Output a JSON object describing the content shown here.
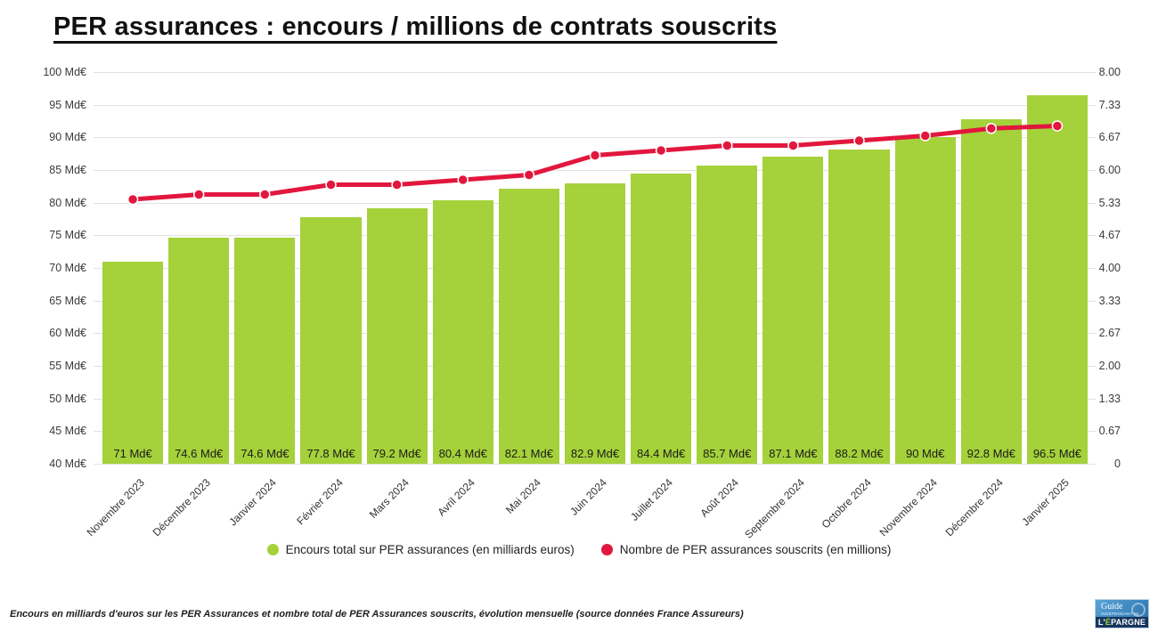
{
  "title": "PER assurances : encours / millions de contrats souscrits",
  "legend": {
    "bars_label": "Encours total sur PER assurances (en milliards euros)",
    "line_label": "Nombre de PER assurances souscrits (en millions)"
  },
  "footnote": "Encours en milliards d'euros sur les PER Assurances et nombre total de PER Assurances souscrits, évolution mensuelle (source données France Assureurs)",
  "logo": {
    "l1": "Guide",
    "l2": "INDÉPENDANT de",
    "l3a": "L'",
    "l3b": "É",
    "l3c": "PARGNE"
  },
  "colors": {
    "bar": "#a5d13a",
    "line": "#e2173d",
    "grid": "#e2e2e2",
    "marker_stroke": "#ffffff"
  },
  "chart_data": {
    "type": "bar+line",
    "categories": [
      "Novembre 2023",
      "Décembre 2023",
      "Janvier 2024",
      "Février 2024",
      "Mars 2024",
      "Avril 2024",
      "Mai 2024",
      "Juin 2024",
      "Juillet 2024",
      "Août 2024",
      "Septembre 2024",
      "Octobre 2024",
      "Novembre 2024",
      "Décembre 2024",
      "Janvier 2025"
    ],
    "series": [
      {
        "name": "Encours total sur PER assurances (en milliards euros)",
        "type": "bar",
        "axis": "left",
        "unit": "Md€",
        "values": [
          71,
          74.6,
          74.6,
          77.8,
          79.2,
          80.4,
          82.1,
          82.9,
          84.4,
          85.7,
          87.1,
          88.2,
          90,
          92.8,
          96.5
        ],
        "labels": [
          "71 Md€",
          "74.6 Md€",
          "74.6 Md€",
          "77.8 Md€",
          "79.2 Md€",
          "80.4 Md€",
          "82.1 Md€",
          "82.9 Md€",
          "84.4 Md€",
          "85.7 Md€",
          "87.1 Md€",
          "88.2 Md€",
          "90 Md€",
          "92.8 Md€",
          "96.5 Md€"
        ]
      },
      {
        "name": "Nombre de PER assurances souscrits (en millions)",
        "type": "line",
        "axis": "right",
        "unit": "millions",
        "values": [
          5.4,
          5.5,
          5.5,
          5.7,
          5.7,
          5.8,
          5.9,
          6.3,
          6.4,
          6.5,
          6.5,
          6.6,
          6.7,
          6.85,
          6.9
        ]
      }
    ],
    "left_axis": {
      "min": 40,
      "max": 100,
      "ticks": [
        "100 Md€",
        "95 Md€",
        "90 Md€",
        "85 Md€",
        "80 Md€",
        "75 Md€",
        "70 Md€",
        "65 Md€",
        "60 Md€",
        "55 Md€",
        "50 Md€",
        "45 Md€",
        "40 Md€"
      ]
    },
    "right_axis": {
      "min": 0,
      "max": 8,
      "ticks": [
        "8.00",
        "7.33",
        "6.67",
        "6.00",
        "5.33",
        "4.67",
        "4.00",
        "3.33",
        "2.67",
        "2.00",
        "1.33",
        "0.67",
        "0"
      ]
    },
    "grid": "horizontal",
    "legend_position": "bottom"
  }
}
